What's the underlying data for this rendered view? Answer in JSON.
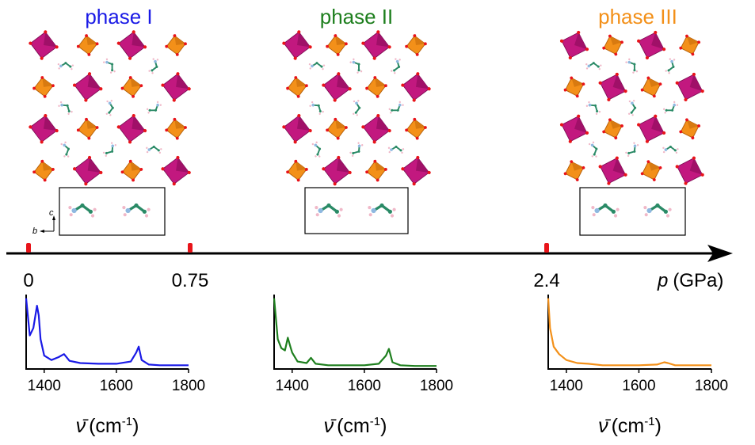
{
  "phases": [
    {
      "label": "phase I",
      "color": "#1a1ae6"
    },
    {
      "label": "phase II",
      "color": "#1e7f1e"
    },
    {
      "label": "phase III",
      "color": "#f39019"
    }
  ],
  "pressure_axis": {
    "ticks": [
      "0",
      "0.75",
      "2.4"
    ],
    "tick_values": [
      0,
      0.75,
      2.4
    ],
    "label_var": "p",
    "label_unit": "(GPa)",
    "marker_color": "#e8141a"
  },
  "inset_axes": {
    "c": "c",
    "b": "b"
  },
  "structure_colors": {
    "octahedron_dark": "#c2187f",
    "octahedron_light": "#f39019",
    "vertex": "#e8141a",
    "linker": "#2a8a66",
    "amine": "#8fb8e0",
    "hydrogen": "#f0b8c8"
  },
  "chart_data": [
    {
      "type": "line",
      "name": "phase I spectrum",
      "color": "#1a1ae6",
      "xlim": [
        1350,
        1800
      ],
      "xticks": [
        "1400",
        "1600",
        "1800"
      ],
      "xlabel_symbol": "ν̄",
      "xlabel_unit": "(cm",
      "xlabel_exp": "-1",
      "xlabel_close": ")",
      "x": [
        1350,
        1360,
        1370,
        1380,
        1385,
        1390,
        1400,
        1420,
        1440,
        1455,
        1470,
        1500,
        1550,
        1600,
        1640,
        1655,
        1662,
        1670,
        1690,
        1720,
        1760,
        1800
      ],
      "y": [
        0.95,
        0.45,
        0.55,
        0.85,
        0.72,
        0.4,
        0.18,
        0.12,
        0.16,
        0.2,
        0.11,
        0.08,
        0.07,
        0.07,
        0.1,
        0.22,
        0.3,
        0.12,
        0.06,
        0.05,
        0.05,
        0.05
      ]
    },
    {
      "type": "line",
      "name": "phase II spectrum",
      "color": "#1e7f1e",
      "xlim": [
        1350,
        1800
      ],
      "xticks": [
        "1400",
        "1600",
        "1800"
      ],
      "xlabel_symbol": "ν̄",
      "xlabel_unit": "(cm",
      "xlabel_exp": "-1",
      "xlabel_close": ")",
      "x": [
        1350,
        1360,
        1370,
        1380,
        1388,
        1395,
        1400,
        1415,
        1440,
        1452,
        1465,
        1500,
        1550,
        1600,
        1640,
        1660,
        1668,
        1678,
        1700,
        1740,
        1800
      ],
      "y": [
        0.95,
        0.4,
        0.28,
        0.25,
        0.42,
        0.3,
        0.22,
        0.1,
        0.08,
        0.15,
        0.07,
        0.05,
        0.05,
        0.05,
        0.07,
        0.18,
        0.27,
        0.09,
        0.05,
        0.04,
        0.04
      ]
    },
    {
      "type": "line",
      "name": "phase III spectrum",
      "color": "#f39019",
      "xlim": [
        1350,
        1800
      ],
      "xticks": [
        "1400",
        "1600",
        "1800"
      ],
      "xlabel_symbol": "ν̄",
      "xlabel_unit": "(cm",
      "xlabel_exp": "-1",
      "xlabel_close": ")",
      "x": [
        1350,
        1355,
        1365,
        1380,
        1400,
        1430,
        1460,
        1500,
        1550,
        1600,
        1650,
        1670,
        1680,
        1700,
        1740,
        1800
      ],
      "y": [
        0.95,
        0.55,
        0.3,
        0.2,
        0.12,
        0.08,
        0.07,
        0.05,
        0.05,
        0.05,
        0.06,
        0.09,
        0.08,
        0.05,
        0.05,
        0.05
      ]
    }
  ]
}
